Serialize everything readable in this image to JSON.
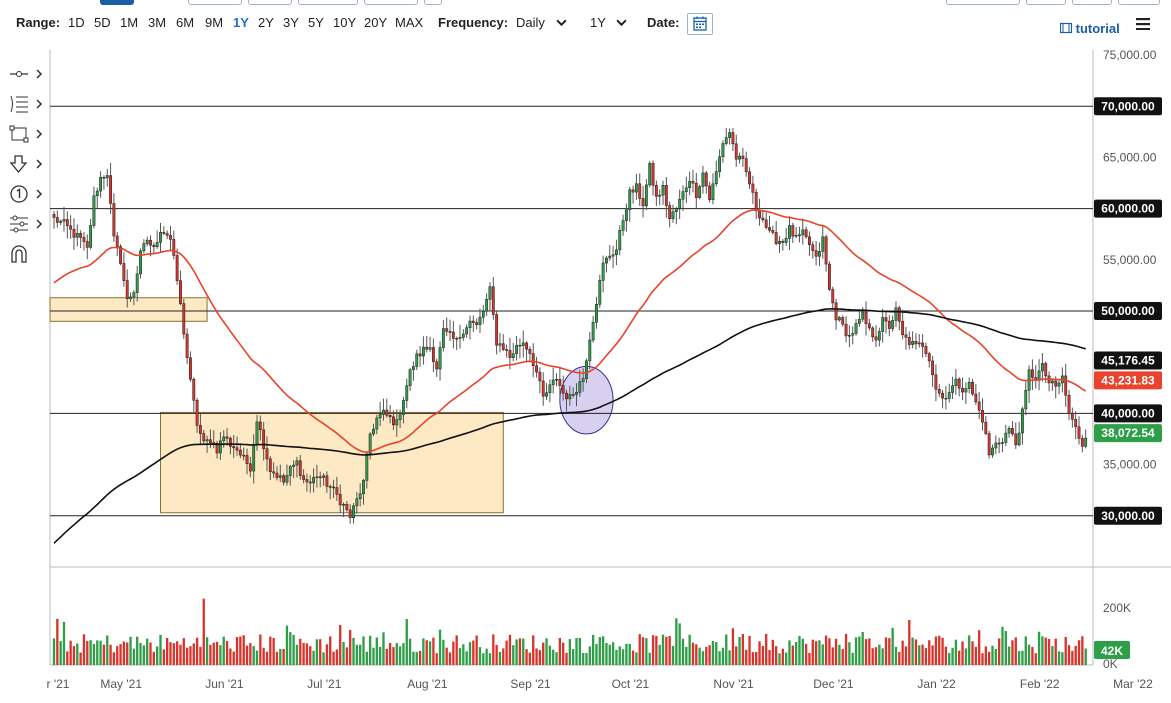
{
  "toolbar": {
    "range_label": "Range:",
    "ranges": [
      "1D",
      "5D",
      "1M",
      "3M",
      "6M",
      "9M",
      "1Y",
      "2Y",
      "3Y",
      "5Y",
      "10Y",
      "20Y",
      "MAX"
    ],
    "active_range": "1Y",
    "frequency_label": "Frequency:",
    "frequency_value": "Daily",
    "period_value": "1Y",
    "date_label": "Date:",
    "tutorial_label": "tutorial"
  },
  "icons": {
    "tools": [
      "line-tool-icon",
      "fib-tool-icon",
      "rectangle-tool-icon",
      "arrow-down-tool-icon",
      "counter-tool-icon",
      "indicator-tool-icon",
      "magnet-icon"
    ],
    "calendar": "calendar-icon",
    "menu": "hamburger-menu-icon",
    "tutorial": "film-icon"
  },
  "colors": {
    "up_candle": "#2e9e48",
    "down_candle": "#d9342b",
    "ema_fast": "#e8432c",
    "ema_slow": "#111111",
    "zone_fill": "#fde9c4",
    "zone_border": "#8a7033",
    "ellipse_fill": "#c9c0ec",
    "ellipse_border": "#3a2e8a",
    "accent": "#1a73c9"
  },
  "chart_data": {
    "type": "candlestick",
    "instrument_note": "",
    "xlabel": "",
    "ylabel": "",
    "ylim": [
      25000,
      75500
    ],
    "y_ticks": [
      30000,
      35000,
      40000,
      45000,
      50000,
      55000,
      60000,
      65000,
      70000,
      75000
    ],
    "y_tick_labels": [
      "30,000.00",
      "35,000.00",
      "40,000.00",
      "45,000.00",
      "50,000.00",
      "55,000.00",
      "60,000.00",
      "65,000.00",
      "70,000.00",
      "75,000.00"
    ],
    "x_tick_labels": [
      "r '21",
      "May '21",
      "Jun '21",
      "Jul '21",
      "Aug '21",
      "Sep '21",
      "Oct '21",
      "Nov '21",
      "Dec '21",
      "Jan '22",
      "Feb '22",
      "Mar '22"
    ],
    "horizontal_levels": [
      30000,
      40000,
      50000,
      60000,
      70000
    ],
    "level_labels": [
      "30,000.00",
      "40,000.00",
      "50,000.00",
      "60,000.00",
      "70,000.00"
    ],
    "price_tags": [
      {
        "label": "45,176.45",
        "value": 45176.45,
        "color": "#111111",
        "series": "ema_slow"
      },
      {
        "label": "43,231.83",
        "value": 43231.83,
        "color": "#e8432c",
        "series": "ema_fast"
      },
      {
        "label": "38,072.54",
        "value": 38072.54,
        "color": "#2e9e48",
        "series": "last_price"
      }
    ],
    "close_anchors": [
      [
        0,
        59000
      ],
      [
        3,
        58500
      ],
      [
        6,
        57500
      ],
      [
        8,
        57000
      ],
      [
        10,
        56000
      ],
      [
        12,
        61000
      ],
      [
        14,
        63000
      ],
      [
        16,
        63500
      ],
      [
        18,
        57000
      ],
      [
        20,
        55000
      ],
      [
        22,
        51000
      ],
      [
        24,
        52000
      ],
      [
        26,
        55500
      ],
      [
        28,
        57000
      ],
      [
        30,
        56000
      ],
      [
        32,
        58000
      ],
      [
        34,
        57500
      ],
      [
        35,
        57000
      ],
      [
        37,
        53000
      ],
      [
        39,
        48000
      ],
      [
        41,
        43000
      ],
      [
        43,
        39000
      ],
      [
        45,
        37000
      ],
      [
        47,
        37500
      ],
      [
        49,
        36500
      ],
      [
        51,
        37800
      ],
      [
        53,
        37000
      ],
      [
        55,
        36500
      ],
      [
        57,
        35500
      ],
      [
        59,
        34800
      ],
      [
        61,
        39500
      ],
      [
        63,
        37000
      ],
      [
        65,
        34500
      ],
      [
        67,
        34000
      ],
      [
        69,
        33300
      ],
      [
        71,
        34500
      ],
      [
        73,
        35200
      ],
      [
        75,
        33500
      ],
      [
        77,
        33200
      ],
      [
        79,
        34000
      ],
      [
        81,
        33500
      ],
      [
        83,
        32800
      ],
      [
        85,
        32000
      ],
      [
        87,
        31000
      ],
      [
        89,
        29900
      ],
      [
        91,
        31500
      ],
      [
        93,
        33200
      ],
      [
        95,
        38000
      ],
      [
        97,
        39500
      ],
      [
        99,
        40000
      ],
      [
        101,
        39500
      ],
      [
        103,
        39000
      ],
      [
        105,
        41500
      ],
      [
        107,
        44000
      ],
      [
        109,
        45500
      ],
      [
        111,
        46200
      ],
      [
        113,
        46500
      ],
      [
        115,
        44500
      ],
      [
        117,
        48000
      ],
      [
        119,
        47500
      ],
      [
        121,
        47000
      ],
      [
        123,
        48200
      ],
      [
        125,
        49000
      ],
      [
        127,
        48500
      ],
      [
        129,
        50000
      ],
      [
        131,
        52000
      ],
      [
        133,
        47000
      ],
      [
        135,
        46500
      ],
      [
        137,
        45500
      ],
      [
        139,
        46500
      ],
      [
        141,
        47000
      ],
      [
        143,
        46000
      ],
      [
        145,
        44000
      ],
      [
        147,
        41500
      ],
      [
        149,
        42500
      ],
      [
        151,
        43500
      ],
      [
        153,
        42000
      ],
      [
        155,
        41500
      ],
      [
        157,
        42500
      ],
      [
        159,
        43500
      ],
      [
        161,
        47500
      ],
      [
        163,
        51000
      ],
      [
        165,
        54500
      ],
      [
        167,
        55500
      ],
      [
        169,
        56000
      ],
      [
        171,
        59000
      ],
      [
        173,
        61500
      ],
      [
        175,
        62000
      ],
      [
        177,
        60500
      ],
      [
        179,
        64000
      ],
      [
        181,
        61000
      ],
      [
        183,
        62000
      ],
      [
        185,
        59000
      ],
      [
        187,
        60000
      ],
      [
        189,
        61500
      ],
      [
        191,
        63000
      ],
      [
        193,
        61500
      ],
      [
        195,
        63500
      ],
      [
        197,
        61000
      ],
      [
        199,
        63500
      ],
      [
        201,
        66500
      ],
      [
        203,
        67500
      ],
      [
        205,
        65000
      ],
      [
        207,
        64500
      ],
      [
        209,
        62500
      ],
      [
        211,
        60000
      ],
      [
        213,
        59000
      ],
      [
        215,
        57500
      ],
      [
        217,
        57000
      ],
      [
        219,
        56800
      ],
      [
        221,
        58000
      ],
      [
        223,
        57000
      ],
      [
        225,
        57500
      ],
      [
        227,
        56500
      ],
      [
        229,
        55000
      ],
      [
        231,
        57000
      ],
      [
        233,
        52000
      ],
      [
        235,
        49500
      ],
      [
        237,
        48500
      ],
      [
        239,
        47500
      ],
      [
        241,
        48500
      ],
      [
        243,
        49500
      ],
      [
        245,
        48000
      ],
      [
        247,
        47500
      ],
      [
        249,
        49000
      ],
      [
        251,
        48500
      ],
      [
        253,
        50000
      ],
      [
        255,
        47500
      ],
      [
        257,
        47000
      ],
      [
        259,
        46500
      ],
      [
        261,
        46800
      ],
      [
        263,
        45500
      ],
      [
        265,
        42500
      ],
      [
        267,
        41500
      ],
      [
        269,
        42200
      ],
      [
        271,
        43000
      ],
      [
        273,
        42500
      ],
      [
        275,
        42800
      ],
      [
        277,
        41000
      ],
      [
        279,
        39500
      ],
      [
        281,
        36000
      ],
      [
        283,
        37000
      ],
      [
        285,
        37500
      ],
      [
        287,
        38500
      ],
      [
        289,
        37000
      ],
      [
        291,
        40000
      ],
      [
        293,
        44000
      ],
      [
        295,
        43500
      ],
      [
        297,
        44500
      ],
      [
        299,
        43000
      ],
      [
        301,
        42500
      ],
      [
        303,
        43500
      ],
      [
        305,
        40000
      ],
      [
        307,
        38500
      ],
      [
        309,
        37000
      ],
      [
        310,
        38000
      ]
    ],
    "volume_axis_ticks": [
      "0K",
      "200K"
    ],
    "volume_last_label": "42K",
    "annotations": [
      {
        "type": "zone",
        "price_range": [
          49000,
          51300
        ],
        "day_range": [
          0,
          46
        ]
      },
      {
        "type": "zone",
        "price_range": [
          30300,
          40100
        ],
        "day_range": [
          32,
          135
        ]
      },
      {
        "type": "ellipse",
        "center_day": 160,
        "center_price": 41300,
        "radius_days": 8,
        "radius_price": 3300
      }
    ]
  }
}
